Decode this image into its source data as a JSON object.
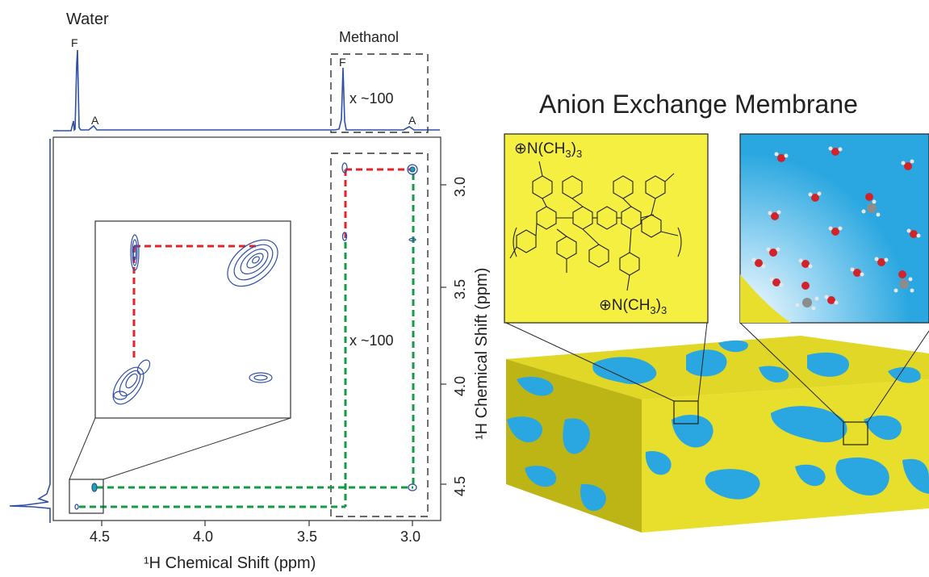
{
  "nmr": {
    "spectrum_labels": {
      "water": "Water",
      "methanol": "Methanol",
      "peak_f": "F",
      "peak_a": "A",
      "scale_note": "x ~100"
    },
    "x_axis_label": "¹H Chemical Shift (ppm)",
    "y_axis_label": "¹H Chemical Shift (ppm)",
    "x_ticks": [
      "4.5",
      "4.0",
      "3.5",
      "3.0"
    ],
    "y_ticks": [
      "3.0",
      "3.5",
      "4.0",
      "4.5"
    ],
    "line_color": "#2f4fa8",
    "red_dash": "#e0262a",
    "green_dash": "#179a45"
  },
  "chart_data": {
    "type": "heatmap",
    "xlabel": "¹H Chemical Shift (ppm)",
    "ylabel": "¹H Chemical Shift (ppm)",
    "xlim": [
      4.8,
      2.8
    ],
    "ylim": [
      2.8,
      4.8
    ],
    "x_ticks": [
      4.5,
      4.0,
      3.5,
      3.0
    ],
    "y_ticks": [
      3.0,
      3.5,
      4.0,
      4.5
    ],
    "peaks_1d": [
      {
        "label": "F",
        "group": "Water",
        "ppm": 4.67
      },
      {
        "label": "A",
        "group": "Water",
        "ppm": 4.58
      },
      {
        "label": "F",
        "group": "Methanol",
        "ppm": 3.25
      },
      {
        "label": "A",
        "group": "Methanol",
        "ppm": 2.86
      }
    ],
    "cross_peaks": [
      {
        "x": 4.67,
        "y": 4.67
      },
      {
        "x": 4.67,
        "y": 4.58
      },
      {
        "x": 3.25,
        "y": 2.86
      },
      {
        "x": 3.25,
        "y": 3.25
      },
      {
        "x": 2.86,
        "y": 2.86
      },
      {
        "x": 2.86,
        "y": 3.25
      },
      {
        "x": 3.25,
        "y": 4.58
      },
      {
        "x": 2.86,
        "y": 4.58
      }
    ],
    "annotations": [
      "x ~100",
      "x ~100"
    ]
  },
  "membrane": {
    "title": "Anion Exchange Membrane",
    "chem_top": "⊕N(CH",
    "chem_bottom": "⊕N(CH",
    "sub3": "3",
    "paren3": ")",
    "colors": {
      "yellow": "#e8df2c",
      "yellow_dark": "#c9c018",
      "blue": "#2aa7e0",
      "oxygen": "#d2232a",
      "hydrogen": "#e6e6e6",
      "carbon": "#8c8c8c"
    }
  }
}
